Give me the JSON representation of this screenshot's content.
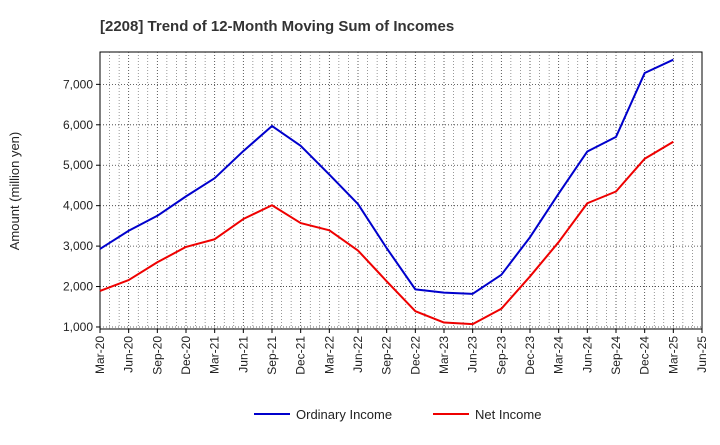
{
  "chart_data": {
    "type": "line",
    "title": "[2208]  Trend of 12-Month Moving Sum of Incomes",
    "xlabel": "",
    "ylabel": "Amount (million yen)",
    "ylim": [
      950,
      7800
    ],
    "yticks": [
      1000,
      2000,
      3000,
      4000,
      5000,
      6000,
      7000
    ],
    "ytick_labels": [
      "1,000",
      "2,000",
      "3,000",
      "4,000",
      "5,000",
      "6,000",
      "7,000"
    ],
    "categories": [
      "Mar-20",
      "Jun-20",
      "Sep-20",
      "Dec-20",
      "Mar-21",
      "Jun-21",
      "Sep-21",
      "Dec-21",
      "Mar-22",
      "Jun-22",
      "Sep-22",
      "Dec-22",
      "Mar-23",
      "Jun-23",
      "Sep-23",
      "Dec-23",
      "Mar-24",
      "Jun-24",
      "Sep-24",
      "Dec-24",
      "Mar-25",
      "Jun-25"
    ],
    "grid": true,
    "legend_position": "bottom-center",
    "series": [
      {
        "name": "Ordinary Income",
        "color": "#0000cc",
        "values": [
          2930,
          3380,
          3750,
          4230,
          4680,
          5350,
          5970,
          5480,
          4770,
          4040,
          2950,
          1930,
          1850,
          1820,
          2290,
          3220,
          4300,
          5340,
          5700,
          7280,
          7610,
          null
        ]
      },
      {
        "name": "Net Income",
        "color": "#ee0000",
        "values": [
          1890,
          2160,
          2600,
          2980,
          3170,
          3670,
          4010,
          3570,
          3390,
          2890,
          2130,
          1390,
          1110,
          1070,
          1450,
          2250,
          3100,
          4060,
          4350,
          5160,
          5580,
          null
        ]
      }
    ]
  }
}
